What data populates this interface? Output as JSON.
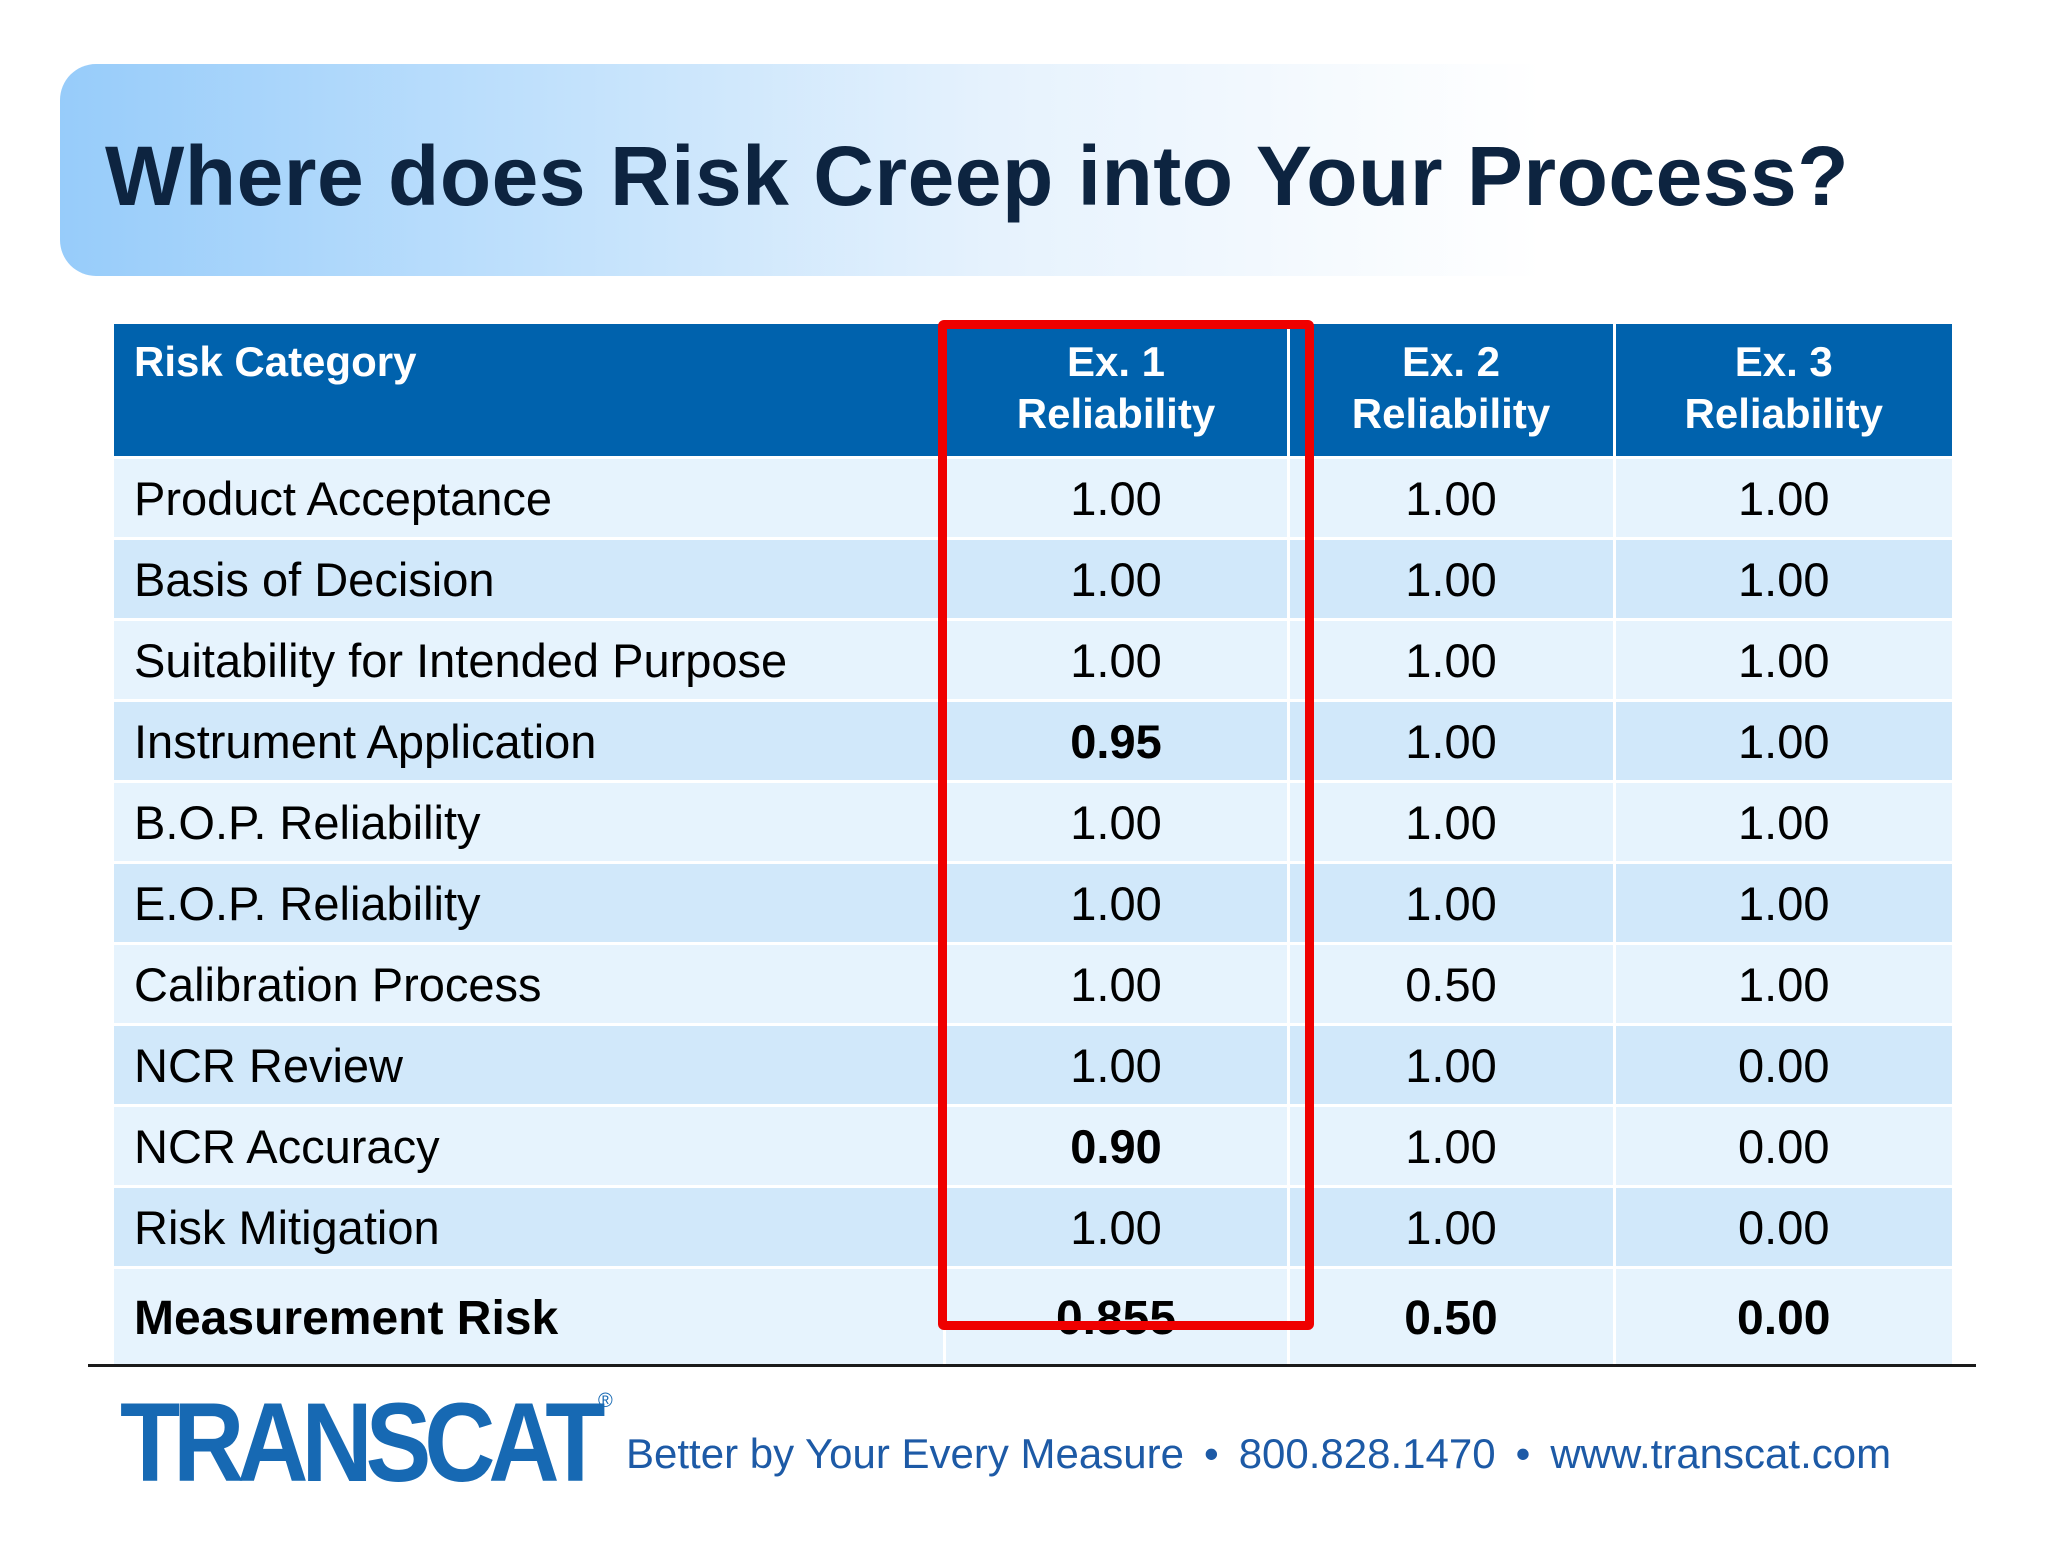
{
  "title": "Where does Risk Creep into Your Process?",
  "table": {
    "headers": {
      "category": "Risk Category",
      "ex1_line1": "Ex. 1",
      "ex1_line2": "Reliability",
      "ex2_line1": "Ex. 2",
      "ex2_line2": "Reliability",
      "ex3_line1": "Ex. 3",
      "ex3_line2": "Reliability"
    },
    "rows": [
      {
        "category": "Product Acceptance",
        "ex1": "1.00",
        "ex2": "1.00",
        "ex3": "1.00"
      },
      {
        "category": "Basis of Decision",
        "ex1": "1.00",
        "ex2": "1.00",
        "ex3": "1.00"
      },
      {
        "category": "Suitability for Intended Purpose",
        "ex1": "1.00",
        "ex2": "1.00",
        "ex3": "1.00"
      },
      {
        "category": "Instrument Application",
        "ex1": "0.95",
        "ex2": "1.00",
        "ex3": "1.00"
      },
      {
        "category": "B.O.P. Reliability",
        "ex1": "1.00",
        "ex2": "1.00",
        "ex3": "1.00"
      },
      {
        "category": "E.O.P. Reliability",
        "ex1": "1.00",
        "ex2": "1.00",
        "ex3": "1.00"
      },
      {
        "category": "Calibration Process",
        "ex1": "1.00",
        "ex2": "0.50",
        "ex3": "1.00"
      },
      {
        "category": "NCR Review",
        "ex1": "1.00",
        "ex2": "1.00",
        "ex3": "0.00"
      },
      {
        "category": "NCR Accuracy",
        "ex1": "0.90",
        "ex2": "1.00",
        "ex3": "0.00"
      },
      {
        "category": "Risk Mitigation",
        "ex1": "1.00",
        "ex2": "1.00",
        "ex3": "0.00"
      }
    ],
    "total": {
      "category": "Measurement Risk",
      "ex1": "0.855",
      "ex2": "0.50",
      "ex3": "0.00"
    }
  },
  "colors": {
    "header_bg": "#0062ad",
    "row_light": "#e6f3fd",
    "row_dark": "#d1e8fa",
    "highlight": "#ef0000",
    "brand": "#1769b3"
  },
  "footer": {
    "logo_text": "TRANSCAT",
    "logo_registered": "®",
    "tagline": "Better by Your Every Measure",
    "separator": "•",
    "phone": "800.828.1470",
    "website": "www.transcat.com"
  }
}
